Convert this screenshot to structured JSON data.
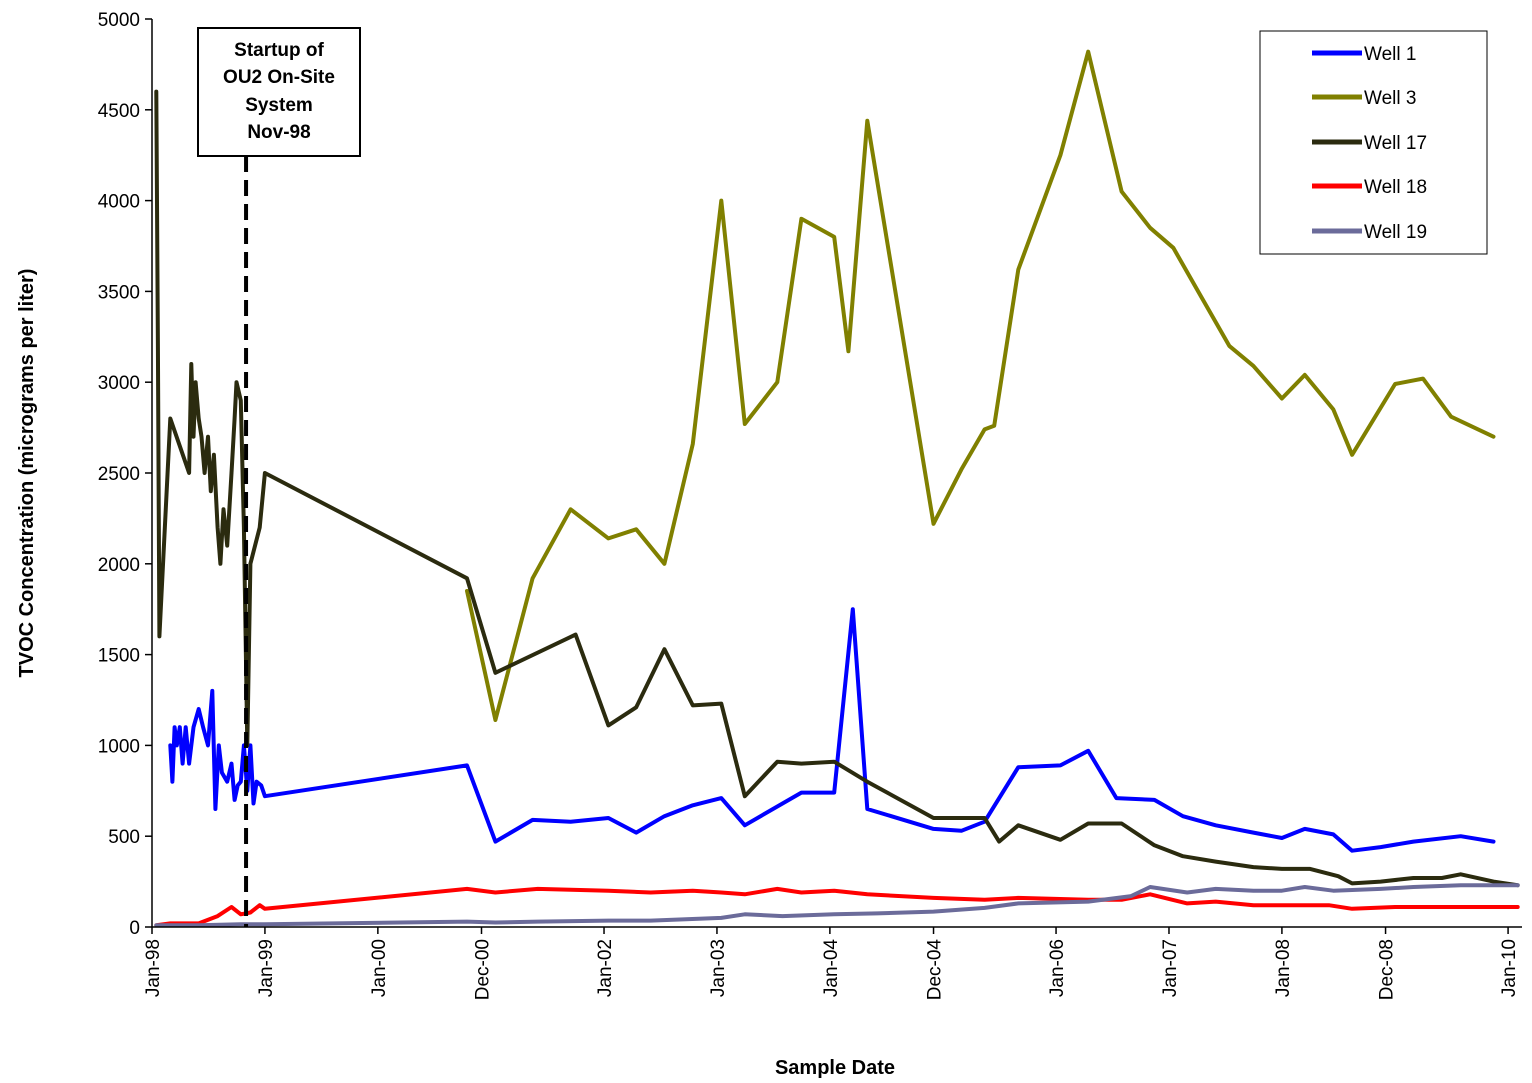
{
  "chart_data": {
    "type": "line",
    "xlabel": "Sample Date",
    "ylabel": "TVOC Concentration (micrograms per liter)",
    "ylim": [
      0,
      5000
    ],
    "yticks": [
      0,
      500,
      1000,
      1500,
      2000,
      2500,
      3000,
      3500,
      4000,
      4500,
      5000
    ],
    "xlim": [
      "1998-01-01",
      "2010-02-15"
    ],
    "xticks": [
      {
        "date": "1998-01-01",
        "label": "Jan-98"
      },
      {
        "date": "1999-01-01",
        "label": "Jan-99"
      },
      {
        "date": "2000-01-01",
        "label": "Jan-00"
      },
      {
        "date": "2000-12-01",
        "label": "Dec-00"
      },
      {
        "date": "2002-01-01",
        "label": "Jan-02"
      },
      {
        "date": "2003-01-01",
        "label": "Jan-03"
      },
      {
        "date": "2004-01-01",
        "label": "Jan-04"
      },
      {
        "date": "2004-12-01",
        "label": "Dec-04"
      },
      {
        "date": "2006-01-01",
        "label": "Jan-06"
      },
      {
        "date": "2007-01-01",
        "label": "Jan-07"
      },
      {
        "date": "2008-01-01",
        "label": "Jan-08"
      },
      {
        "date": "2008-12-01",
        "label": "Dec-08"
      },
      {
        "date": "2010-01-01",
        "label": "Jan-10"
      }
    ],
    "grid": false,
    "legend_position": "top-right",
    "annotation": {
      "lines": [
        "Startup of",
        "OU2 On-Site",
        "System",
        "Nov-98"
      ],
      "date": "1998-11-01",
      "style": "dashed vertical line"
    },
    "series": [
      {
        "name": "Well 1",
        "color": "#0000ff",
        "points": [
          [
            "1998-03-01",
            1000
          ],
          [
            "1998-03-08",
            800
          ],
          [
            "1998-03-15",
            1100
          ],
          [
            "1998-03-22",
            1000
          ],
          [
            "1998-04-01",
            1100
          ],
          [
            "1998-04-10",
            900
          ],
          [
            "1998-04-20",
            1100
          ],
          [
            "1998-05-01",
            900
          ],
          [
            "1998-05-15",
            1100
          ],
          [
            "1998-06-01",
            1200
          ],
          [
            "1998-06-15",
            1100
          ],
          [
            "1998-07-01",
            1000
          ],
          [
            "1998-07-15",
            1300
          ],
          [
            "1998-07-25",
            650
          ],
          [
            "1998-08-05",
            1000
          ],
          [
            "1998-08-15",
            850
          ],
          [
            "1998-09-01",
            800
          ],
          [
            "1998-09-15",
            900
          ],
          [
            "1998-09-25",
            700
          ],
          [
            "1998-10-05",
            780
          ],
          [
            "1998-10-15",
            800
          ],
          [
            "1998-10-25",
            1000
          ],
          [
            "1998-11-05",
            750
          ],
          [
            "1998-11-15",
            1000
          ],
          [
            "1998-11-25",
            680
          ],
          [
            "1998-12-05",
            800
          ],
          [
            "1998-12-20",
            780
          ],
          [
            "1999-01-01",
            720
          ],
          [
            "2000-10-15",
            890
          ],
          [
            "2001-01-15",
            470
          ],
          [
            "2001-05-15",
            590
          ],
          [
            "2001-09-15",
            580
          ],
          [
            "2002-01-15",
            600
          ],
          [
            "2002-04-15",
            520
          ],
          [
            "2002-07-15",
            610
          ],
          [
            "2002-10-15",
            670
          ],
          [
            "2003-01-15",
            710
          ],
          [
            "2003-04-01",
            560
          ],
          [
            "2003-10-01",
            740
          ],
          [
            "2004-01-15",
            740
          ],
          [
            "2004-03-15",
            1750
          ],
          [
            "2004-05-01",
            650
          ],
          [
            "2004-12-01",
            540
          ],
          [
            "2005-03-01",
            530
          ],
          [
            "2005-05-15",
            580
          ],
          [
            "2005-09-01",
            880
          ],
          [
            "2006-01-15",
            890
          ],
          [
            "2006-04-15",
            970
          ],
          [
            "2006-07-15",
            710
          ],
          [
            "2006-11-15",
            700
          ],
          [
            "2007-02-15",
            610
          ],
          [
            "2007-06-01",
            560
          ],
          [
            "2007-10-01",
            520
          ],
          [
            "2008-01-01",
            490
          ],
          [
            "2008-03-15",
            540
          ],
          [
            "2008-06-15",
            510
          ],
          [
            "2008-08-15",
            420
          ],
          [
            "2008-11-15",
            440
          ],
          [
            "2009-03-01",
            470
          ],
          [
            "2009-08-01",
            500
          ],
          [
            "2009-11-15",
            470
          ]
        ]
      },
      {
        "name": "Well 3",
        "color": "#808000",
        "points": [
          [
            "2000-10-15",
            1850
          ],
          [
            "2001-01-15",
            1140
          ],
          [
            "2001-05-15",
            1920
          ],
          [
            "2001-09-15",
            2300
          ],
          [
            "2002-01-15",
            2140
          ],
          [
            "2002-04-15",
            2190
          ],
          [
            "2002-07-15",
            2000
          ],
          [
            "2002-10-15",
            2660
          ],
          [
            "2003-01-15",
            4000
          ],
          [
            "2003-04-01",
            2770
          ],
          [
            "2003-07-15",
            3000
          ],
          [
            "2003-10-01",
            3900
          ],
          [
            "2004-01-15",
            3800
          ],
          [
            "2004-03-01",
            3170
          ],
          [
            "2004-05-01",
            4440
          ],
          [
            "2004-12-01",
            2220
          ],
          [
            "2005-03-01",
            2520
          ],
          [
            "2005-05-15",
            2740
          ],
          [
            "2005-06-15",
            2760
          ],
          [
            "2005-09-01",
            3620
          ],
          [
            "2006-01-15",
            4250
          ],
          [
            "2006-04-15",
            4820
          ],
          [
            "2006-08-01",
            4050
          ],
          [
            "2006-11-01",
            3850
          ],
          [
            "2007-01-15",
            3740
          ],
          [
            "2007-04-15",
            3470
          ],
          [
            "2007-07-15",
            3200
          ],
          [
            "2007-10-01",
            3090
          ],
          [
            "2008-01-01",
            2910
          ],
          [
            "2008-03-15",
            3040
          ],
          [
            "2008-06-15",
            2850
          ],
          [
            "2008-08-15",
            2600
          ],
          [
            "2009-01-01",
            2990
          ],
          [
            "2009-04-01",
            3020
          ],
          [
            "2009-07-01",
            2810
          ],
          [
            "2009-11-15",
            2700
          ]
        ]
      },
      {
        "name": "Well 17",
        "color": "#2b2b0f",
        "points": [
          [
            "1998-01-15",
            4600
          ],
          [
            "1998-01-20",
            3200
          ],
          [
            "1998-01-25",
            1600
          ],
          [
            "1998-03-01",
            2800
          ],
          [
            "1998-05-01",
            2500
          ],
          [
            "1998-05-08",
            3100
          ],
          [
            "1998-05-15",
            2700
          ],
          [
            "1998-05-22",
            3000
          ],
          [
            "1998-06-01",
            2800
          ],
          [
            "1998-06-10",
            2700
          ],
          [
            "1998-06-20",
            2500
          ],
          [
            "1998-07-01",
            2700
          ],
          [
            "1998-07-10",
            2400
          ],
          [
            "1998-07-20",
            2600
          ],
          [
            "1998-08-01",
            2200
          ],
          [
            "1998-08-10",
            2000
          ],
          [
            "1998-08-20",
            2300
          ],
          [
            "1998-09-01",
            2100
          ],
          [
            "1998-09-15",
            2500
          ],
          [
            "1998-09-25",
            2800
          ],
          [
            "1998-10-01",
            3000
          ],
          [
            "1998-10-15",
            2900
          ],
          [
            "1998-10-25",
            2200
          ],
          [
            "1998-11-05",
            1000
          ],
          [
            "1998-11-15",
            2000
          ],
          [
            "1998-12-15",
            2200
          ],
          [
            "1999-01-01",
            2500
          ],
          [
            "2000-10-15",
            1920
          ],
          [
            "2001-01-15",
            1400
          ],
          [
            "2001-10-01",
            1610
          ],
          [
            "2002-01-15",
            1110
          ],
          [
            "2002-04-15",
            1210
          ],
          [
            "2002-07-15",
            1530
          ],
          [
            "2002-10-15",
            1220
          ],
          [
            "2003-01-15",
            1230
          ],
          [
            "2003-04-01",
            720
          ],
          [
            "2003-07-15",
            910
          ],
          [
            "2003-10-01",
            900
          ],
          [
            "2004-01-15",
            910
          ],
          [
            "2004-05-01",
            800
          ],
          [
            "2004-12-01",
            600
          ],
          [
            "2005-03-01",
            600
          ],
          [
            "2005-05-15",
            600
          ],
          [
            "2005-07-01",
            470
          ],
          [
            "2005-09-01",
            560
          ],
          [
            "2006-01-15",
            480
          ],
          [
            "2006-04-15",
            570
          ],
          [
            "2006-08-01",
            570
          ],
          [
            "2006-11-15",
            450
          ],
          [
            "2007-02-15",
            390
          ],
          [
            "2007-06-01",
            360
          ],
          [
            "2007-10-01",
            330
          ],
          [
            "2008-01-01",
            320
          ],
          [
            "2008-04-01",
            320
          ],
          [
            "2008-07-01",
            280
          ],
          [
            "2008-08-15",
            240
          ],
          [
            "2008-11-15",
            250
          ],
          [
            "2009-03-01",
            270
          ],
          [
            "2009-06-01",
            270
          ],
          [
            "2009-08-01",
            290
          ],
          [
            "2009-11-15",
            250
          ],
          [
            "2010-02-01",
            230
          ]
        ]
      },
      {
        "name": "Well 18",
        "color": "#ff0000",
        "points": [
          [
            "1998-01-15",
            10
          ],
          [
            "1998-03-01",
            20
          ],
          [
            "1998-06-01",
            20
          ],
          [
            "1998-08-01",
            60
          ],
          [
            "1998-09-15",
            110
          ],
          [
            "1998-10-15",
            70
          ],
          [
            "1998-11-15",
            80
          ],
          [
            "1998-12-15",
            120
          ],
          [
            "1999-01-01",
            100
          ],
          [
            "2000-10-15",
            210
          ],
          [
            "2001-01-15",
            190
          ],
          [
            "2001-06-01",
            210
          ],
          [
            "2002-01-15",
            200
          ],
          [
            "2002-06-01",
            190
          ],
          [
            "2002-10-15",
            200
          ],
          [
            "2003-01-15",
            190
          ],
          [
            "2003-04-01",
            180
          ],
          [
            "2003-07-15",
            210
          ],
          [
            "2003-10-01",
            190
          ],
          [
            "2004-01-15",
            200
          ],
          [
            "2004-05-01",
            180
          ],
          [
            "2004-12-01",
            160
          ],
          [
            "2005-05-15",
            150
          ],
          [
            "2005-09-01",
            160
          ],
          [
            "2006-04-15",
            150
          ],
          [
            "2006-08-01",
            150
          ],
          [
            "2006-11-01",
            180
          ],
          [
            "2007-03-01",
            130
          ],
          [
            "2007-06-01",
            140
          ],
          [
            "2007-10-01",
            120
          ],
          [
            "2008-01-01",
            120
          ],
          [
            "2008-06-01",
            120
          ],
          [
            "2008-08-15",
            100
          ],
          [
            "2009-01-01",
            110
          ],
          [
            "2009-06-01",
            110
          ],
          [
            "2010-02-01",
            110
          ]
        ]
      },
      {
        "name": "Well 19",
        "color": "#6b6b9a",
        "points": [
          [
            "1998-01-15",
            10
          ],
          [
            "1998-06-01",
            10
          ],
          [
            "1998-10-15",
            15
          ],
          [
            "1999-01-01",
            15
          ],
          [
            "2000-10-15",
            30
          ],
          [
            "2001-01-15",
            25
          ],
          [
            "2001-06-01",
            30
          ],
          [
            "2002-01-15",
            35
          ],
          [
            "2002-06-01",
            35
          ],
          [
            "2003-01-15",
            50
          ],
          [
            "2003-04-01",
            70
          ],
          [
            "2003-08-01",
            60
          ],
          [
            "2004-01-15",
            70
          ],
          [
            "2004-06-01",
            75
          ],
          [
            "2004-12-01",
            85
          ],
          [
            "2005-05-15",
            105
          ],
          [
            "2005-09-01",
            130
          ],
          [
            "2006-04-15",
            140
          ],
          [
            "2006-09-01",
            170
          ],
          [
            "2006-11-01",
            220
          ],
          [
            "2007-03-01",
            190
          ],
          [
            "2007-06-01",
            210
          ],
          [
            "2007-10-01",
            200
          ],
          [
            "2008-01-01",
            200
          ],
          [
            "2008-03-15",
            220
          ],
          [
            "2008-06-15",
            200
          ],
          [
            "2008-11-15",
            210
          ],
          [
            "2009-03-01",
            220
          ],
          [
            "2009-08-01",
            230
          ],
          [
            "2010-02-01",
            230
          ]
        ]
      }
    ]
  }
}
